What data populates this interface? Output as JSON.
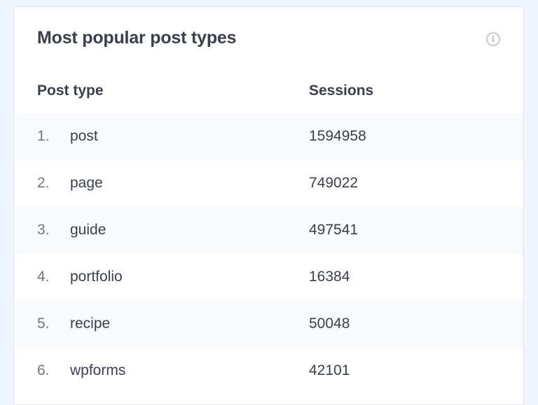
{
  "widget": {
    "title": "Most popular post types",
    "info_icon": "info-icon"
  },
  "columns": [
    "Post type",
    "Sessions"
  ],
  "rows": [
    {
      "rank": "1.",
      "type": "post",
      "sessions": "1594958"
    },
    {
      "rank": "2.",
      "type": "page",
      "sessions": "749022"
    },
    {
      "rank": "3.",
      "type": "guide",
      "sessions": "497541"
    },
    {
      "rank": "4.",
      "type": "portfolio",
      "sessions": "16384"
    },
    {
      "rank": "5.",
      "type": "recipe",
      "sessions": "50048"
    },
    {
      "rank": "6.",
      "type": "wpforms",
      "sessions": "42101"
    }
  ]
}
